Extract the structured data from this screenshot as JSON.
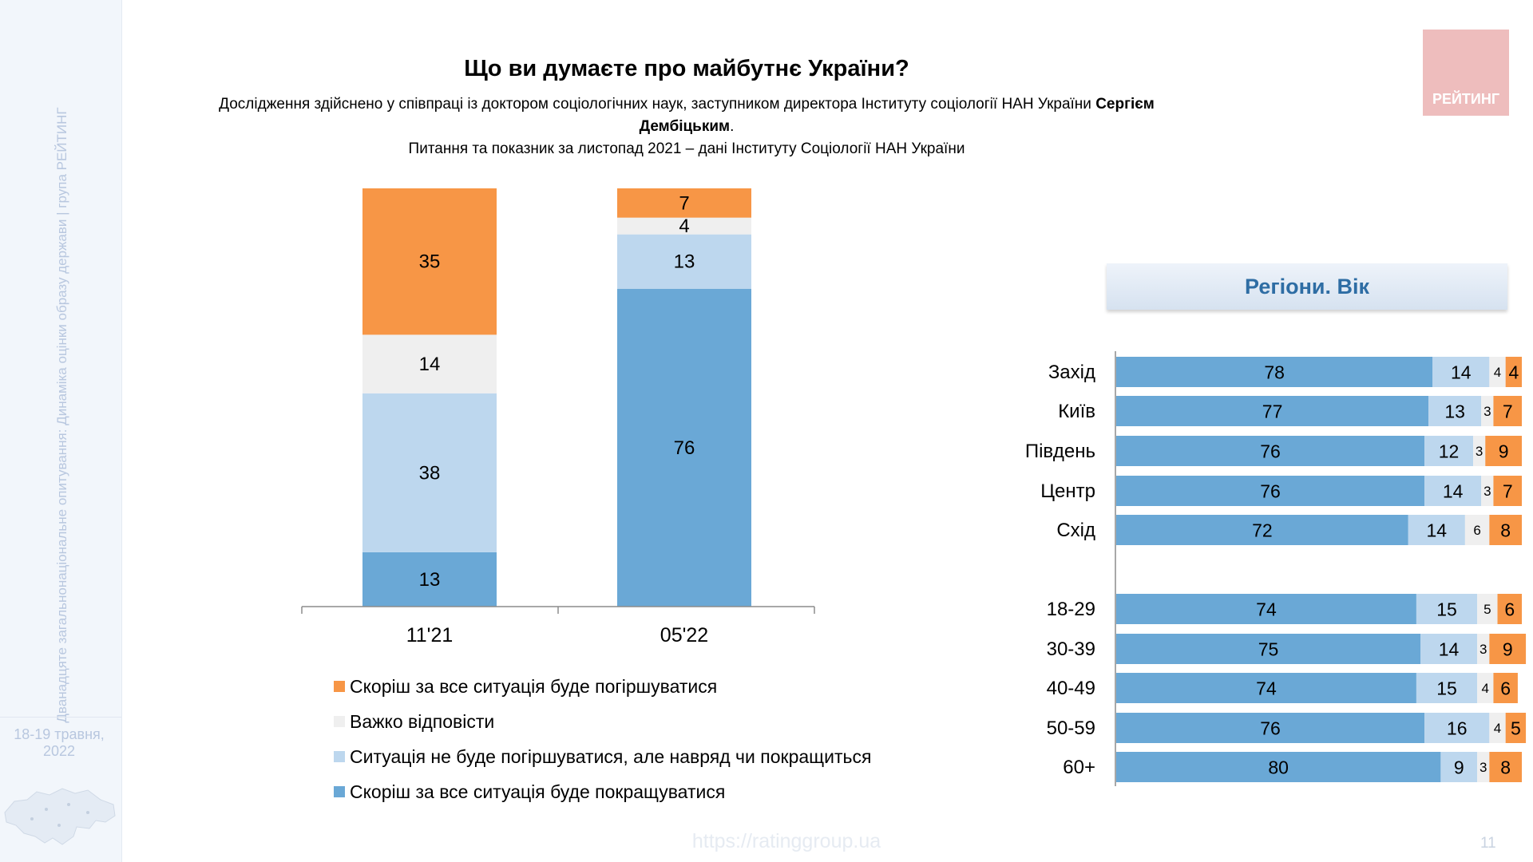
{
  "sidebar": {
    "vertical_text": "Дванадцяте загальнонаціональне опитування: Динаміка оцінки образу держави | група РЕЙТИНГ",
    "date_line1": "18-19 травня,",
    "date_line2": "2022"
  },
  "header": {
    "title": "Що ви думаєте про майбутнє України?",
    "subtitle_line1_prefix": "Дослідження здійснено у співпраці із доктором соціологічних наук, заступником директора Інституту соціології НАН України ",
    "subtitle_line1_bold": "Сергієм Дембіцьким",
    "subtitle_line1_suffix": ".",
    "subtitle_line2": "Питання та показник за листопад 2021 – дані Інституту Соціології НАН України"
  },
  "logo": {
    "text": "РЕЙТИНГ"
  },
  "region_header": "Регіони. Вік",
  "footer": {
    "url": "https://ratinggroup.ua",
    "page": "11"
  },
  "colors": {
    "worse": "#f79646",
    "hard": "#efefef",
    "same": "#bdd7ee",
    "better": "#6aa8d6"
  },
  "legend": [
    {
      "key": "worse",
      "label": "Скоріш за все ситуація буде погіршуватися"
    },
    {
      "key": "hard",
      "label": "Важко відповісти"
    },
    {
      "key": "same",
      "label": "Ситуація не буде погіршуватися, але навряд чи покращиться"
    },
    {
      "key": "better",
      "label": "Скоріш за все ситуація буде покращуватися"
    }
  ],
  "chart_data": [
    {
      "type": "bar",
      "stacked": true,
      "orientation": "vertical",
      "categories": [
        "11'21",
        "05'22"
      ],
      "series": [
        {
          "name": "Скоріш за все ситуація буде покращуватися",
          "key": "better",
          "values": [
            13,
            76
          ]
        },
        {
          "name": "Ситуація не буде погіршуватися, але навряд чи покращиться",
          "key": "same",
          "values": [
            38,
            13
          ]
        },
        {
          "name": "Важко відповісти",
          "key": "hard",
          "values": [
            14,
            4
          ]
        },
        {
          "name": "Скоріш за все ситуація буде погіршуватися",
          "key": "worse",
          "values": [
            35,
            7
          ]
        }
      ],
      "ylim": [
        0,
        100
      ],
      "legend": "bottom"
    },
    {
      "type": "bar",
      "stacked": true,
      "orientation": "horizontal",
      "title": "Регіони. Вік",
      "categories": [
        "Захід",
        "Київ",
        "Південь",
        "Центр",
        "Схід",
        "18-29",
        "30-39",
        "40-49",
        "50-59",
        "60+"
      ],
      "series": [
        {
          "name": "Скоріш за все ситуація буде покращуватися",
          "key": "better",
          "values": [
            78,
            77,
            76,
            76,
            72,
            74,
            75,
            74,
            76,
            80
          ]
        },
        {
          "name": "Ситуація не буде погіршуватися, але навряд чи покращиться",
          "key": "same",
          "values": [
            14,
            13,
            12,
            14,
            14,
            15,
            14,
            15,
            16,
            9
          ]
        },
        {
          "name": "Важко відповісти",
          "key": "hard",
          "values": [
            4,
            3,
            3,
            3,
            6,
            5,
            3,
            4,
            4,
            3
          ]
        },
        {
          "name": "Скоріш за все ситуація буде погіршуватися",
          "key": "worse",
          "values": [
            4,
            7,
            9,
            7,
            8,
            6,
            9,
            6,
            5,
            8
          ]
        }
      ],
      "xlim": [
        0,
        100
      ]
    }
  ]
}
